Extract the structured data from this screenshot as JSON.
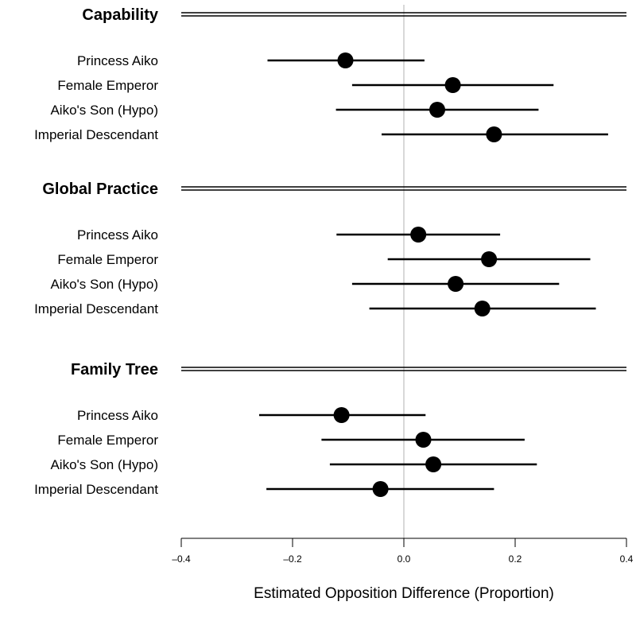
{
  "chart_data": {
    "type": "scatter",
    "xlabel": "Estimated Opposition Difference (Proportion)",
    "xlim": [
      -0.4,
      0.4
    ],
    "xticks": [
      -0.4,
      -0.2,
      0.0,
      0.2,
      0.4
    ],
    "xtick_labels": [
      "–0.4",
      "–0.2",
      "0.0",
      "0.2",
      "0.4"
    ],
    "reference_line": 0,
    "grid": false,
    "groups": [
      {
        "title": "Capability",
        "rows": [
          {
            "label": "Princess Aiko",
            "estimate": -0.105,
            "lower": -0.245,
            "upper": 0.037
          },
          {
            "label": "Female Emperor",
            "estimate": 0.088,
            "lower": -0.093,
            "upper": 0.269
          },
          {
            "label": "Aiko's Son (Hypo)",
            "estimate": 0.06,
            "lower": -0.122,
            "upper": 0.242
          },
          {
            "label": "Imperial Descendant",
            "estimate": 0.162,
            "lower": -0.04,
            "upper": 0.367
          }
        ]
      },
      {
        "title": "Global Practice",
        "rows": [
          {
            "label": "Princess Aiko",
            "estimate": 0.026,
            "lower": -0.121,
            "upper": 0.173
          },
          {
            "label": "Female Emperor",
            "estimate": 0.153,
            "lower": -0.029,
            "upper": 0.335
          },
          {
            "label": "Aiko's Son (Hypo)",
            "estimate": 0.093,
            "lower": -0.093,
            "upper": 0.279
          },
          {
            "label": "Imperial Descendant",
            "estimate": 0.141,
            "lower": -0.062,
            "upper": 0.345
          }
        ]
      },
      {
        "title": "Family Tree",
        "rows": [
          {
            "label": "Princess Aiko",
            "estimate": -0.112,
            "lower": -0.26,
            "upper": 0.039
          },
          {
            "label": "Female Emperor",
            "estimate": 0.035,
            "lower": -0.148,
            "upper": 0.217
          },
          {
            "label": "Aiko's Son (Hypo)",
            "estimate": 0.053,
            "lower": -0.133,
            "upper": 0.239
          },
          {
            "label": "Imperial Descendant",
            "estimate": -0.042,
            "lower": -0.247,
            "upper": 0.162
          }
        ]
      }
    ]
  },
  "colors": {
    "marker": "#000000",
    "interval": "#000000",
    "reference_line": "#b0b0b0",
    "divider": "#000000"
  }
}
